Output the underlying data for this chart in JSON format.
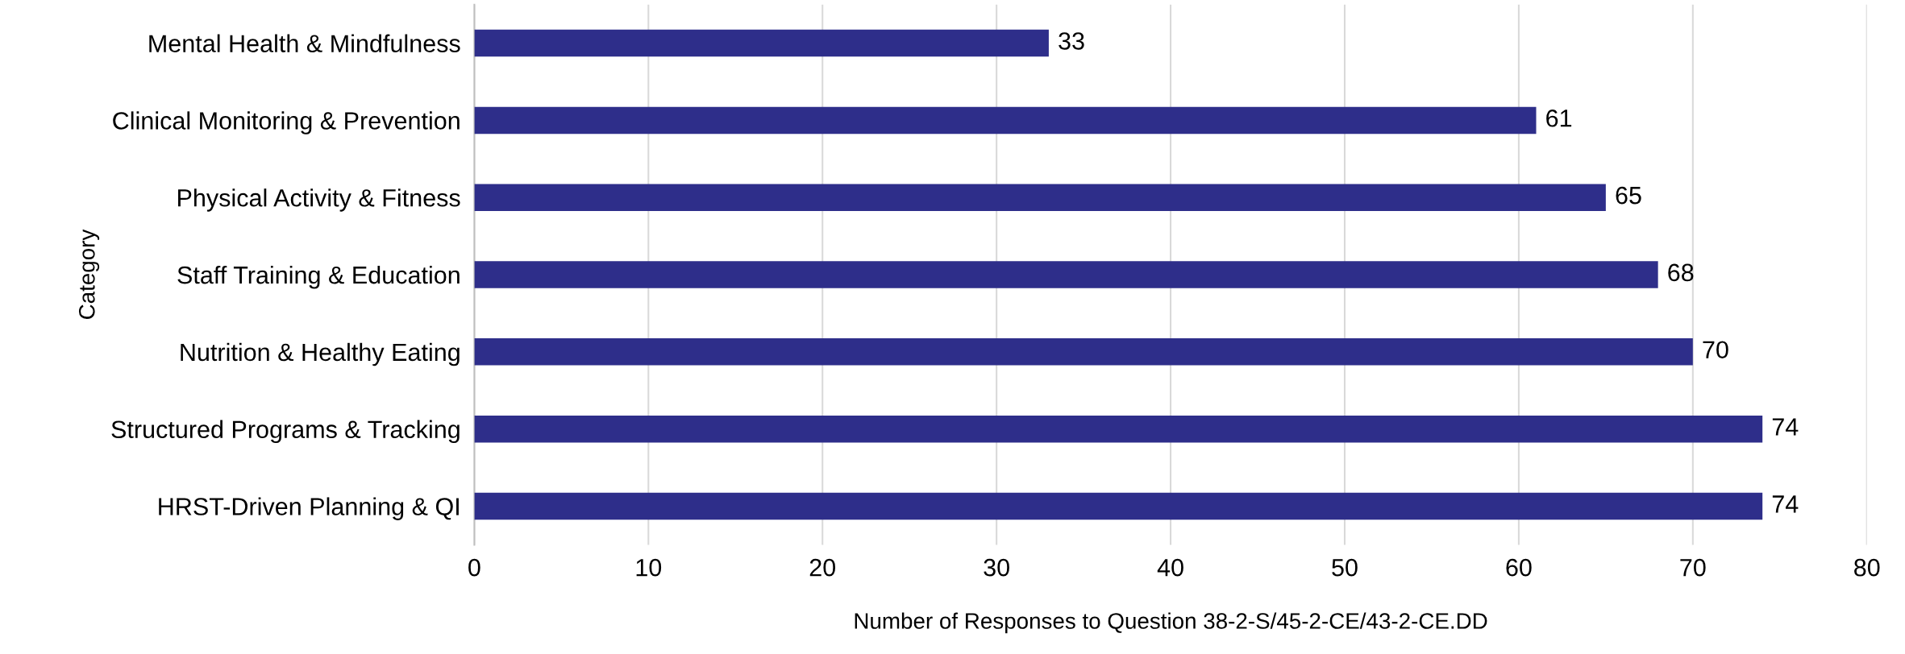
{
  "chart_data": {
    "type": "bar",
    "orientation": "horizontal",
    "xlabel": "Number of Responses to Question 38-2-S/45-2-CE/43-2-CE.DD",
    "ylabel": "Category",
    "categories": [
      "Mental Health & Mindfulness",
      "Clinical Monitoring & Prevention",
      "Physical Activity & Fitness",
      "Staff Training & Education",
      "Nutrition & Healthy Eating",
      "Structured Programs & Tracking",
      "HRST-Driven Planning & QI"
    ],
    "values": [
      33,
      61,
      65,
      68,
      70,
      74,
      74
    ],
    "color": "#2e2e8a",
    "xlim": [
      0,
      80
    ],
    "xticks": [
      0,
      10,
      20,
      30,
      40,
      50,
      60,
      70,
      80
    ],
    "grid": "x",
    "data_labels": true
  }
}
